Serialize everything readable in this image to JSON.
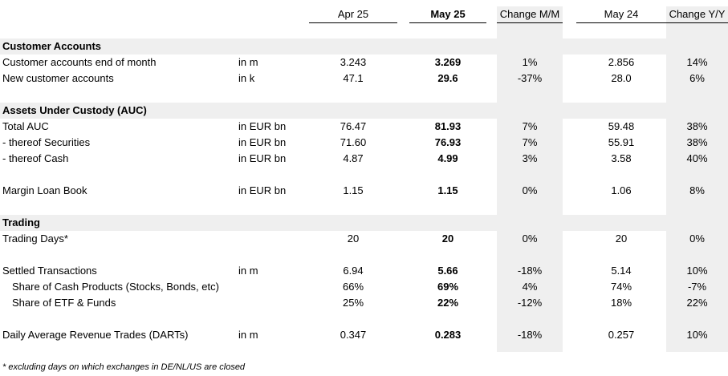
{
  "columns": {
    "apr25": "Apr 25",
    "may25": "May 25",
    "change_mm": "Change M/M",
    "may24": "May 24",
    "change_yy": "Change Y/Y"
  },
  "sections": {
    "customer_accounts": "Customer Accounts",
    "auc": "Assets Under Custody (AUC)",
    "trading": "Trading"
  },
  "rows": [
    {
      "label": "Customer accounts end of month",
      "unit": "in m",
      "apr25": "3.243",
      "may25": "3.269",
      "change_mm": "1%",
      "may24": "2.856",
      "change_yy": "14%"
    },
    {
      "label": "New customer accounts",
      "unit": "in k",
      "apr25": "47.1",
      "may25": "29.6",
      "change_mm": "-37%",
      "may24": "28.0",
      "change_yy": "6%"
    },
    {
      "label": "Total AUC",
      "unit": "in EUR bn",
      "apr25": "76.47",
      "may25": "81.93",
      "change_mm": "7%",
      "may24": "59.48",
      "change_yy": "38%"
    },
    {
      "label": "- thereof Securities",
      "unit": "in EUR bn",
      "apr25": "71.60",
      "may25": "76.93",
      "change_mm": "7%",
      "may24": "55.91",
      "change_yy": "38%"
    },
    {
      "label": "- thereof Cash",
      "unit": "in EUR bn",
      "apr25": "4.87",
      "may25": "4.99",
      "change_mm": "3%",
      "may24": "3.58",
      "change_yy": "40%"
    },
    {
      "label": "Margin Loan Book",
      "unit": "in EUR bn",
      "apr25": "1.15",
      "may25": "1.15",
      "change_mm": "0%",
      "may24": "1.06",
      "change_yy": "8%"
    },
    {
      "label": "Trading Days*",
      "unit": "",
      "apr25": "20",
      "may25": "20",
      "change_mm": "0%",
      "may24": "20",
      "change_yy": "0%"
    },
    {
      "label": "Settled Transactions",
      "unit": "in m",
      "apr25": "6.94",
      "may25": "5.66",
      "change_mm": "-18%",
      "may24": "5.14",
      "change_yy": "10%"
    },
    {
      "label": "Share of Cash Products (Stocks, Bonds, etc)",
      "unit": "",
      "apr25": "66%",
      "may25": "69%",
      "change_mm": "4%",
      "may24": "74%",
      "change_yy": "-7%"
    },
    {
      "label": "Share of ETF & Funds",
      "unit": "",
      "apr25": "25%",
      "may25": "22%",
      "change_mm": "-12%",
      "may24": "18%",
      "change_yy": "22%"
    },
    {
      "label": "Daily Average Revenue Trades (DARTs)",
      "unit": "in m",
      "apr25": "0.347",
      "may25": "0.283",
      "change_mm": "-18%",
      "may24": "0.257",
      "change_yy": "10%"
    }
  ],
  "footnote": "* excluding days on which exchanges in DE/NL/US are closed"
}
